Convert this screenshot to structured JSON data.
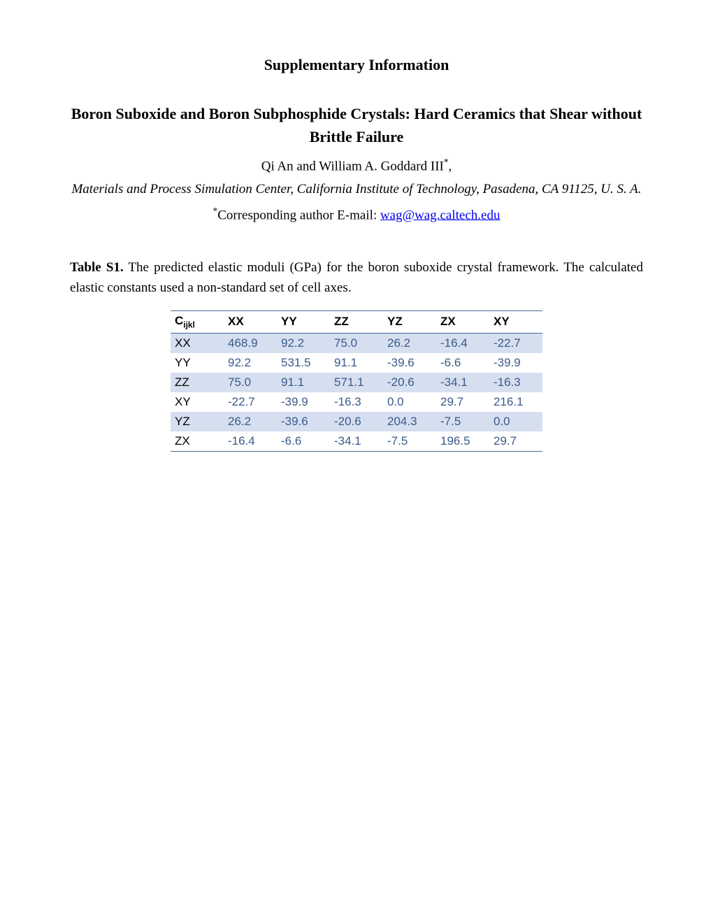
{
  "header": {
    "supp_info": "Supplementary Information",
    "title": "Boron Suboxide and Boron Subphosphide Crystals: Hard Ceramics that Shear without Brittle Failure",
    "authors_prefix": "Qi An and William A. Goddard III",
    "authors_suffix": ",",
    "affiliation": "Materials and Process Simulation Center, California Institute of Technology, Pasadena, CA 91125, U. S. A.",
    "corresponding_label": "Corresponding author E-mail: ",
    "email": "wag@wag.caltech.edu"
  },
  "caption": {
    "label": "Table S1.",
    "text": " The predicted elastic moduli (GPa) for the boron suboxide crystal framework. The calculated elastic constants used a non-standard set of cell axes."
  },
  "table": {
    "header_symbol_base": "C",
    "header_symbol_sub": "ijkl",
    "columns": [
      "XX",
      "YY",
      "ZZ",
      "YZ",
      "ZX",
      "XY"
    ],
    "row_labels": [
      "XX",
      "YY",
      "ZZ",
      "XY",
      "YZ",
      "ZX"
    ],
    "rows": [
      [
        "468.9",
        "92.2",
        "75.0",
        "26.2",
        "-16.4",
        "-22.7"
      ],
      [
        "92.2",
        "531.5",
        "91.1",
        "-39.6",
        "-6.6",
        "-39.9"
      ],
      [
        "75.0",
        "91.1",
        "571.1",
        "-20.6",
        "-34.1",
        "-16.3"
      ],
      [
        "-22.7",
        "-39.9",
        "-16.3",
        "0.0",
        "29.7",
        "216.1"
      ],
      [
        "26.2",
        "-39.6",
        "-20.6",
        "204.3",
        "-7.5",
        "0.0"
      ],
      [
        "-16.4",
        "-6.6",
        "-34.1",
        "-7.5",
        "196.5",
        "29.7"
      ]
    ],
    "alt_row_bg": "#d5dff0",
    "data_color": "#3a5a8a",
    "border_color": "#4a6a9a"
  }
}
